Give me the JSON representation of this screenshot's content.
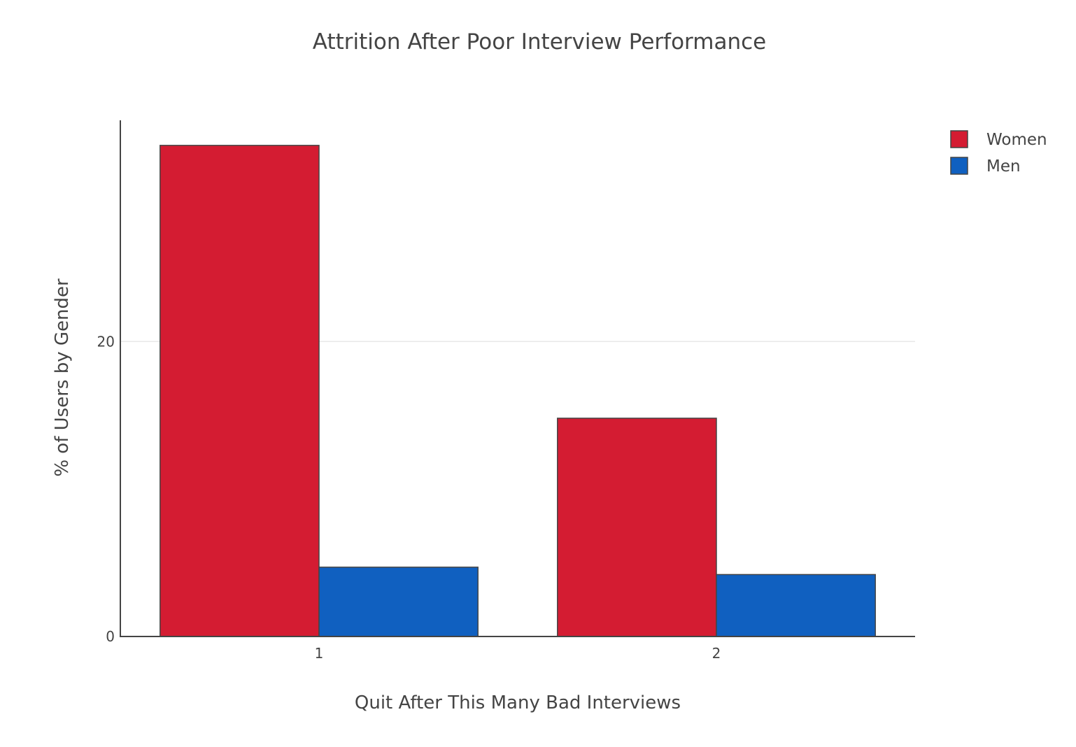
{
  "chart_data": {
    "type": "bar",
    "title": "Attrition After Poor Interview Performance",
    "xlabel": "Quit After This Many Bad Interviews",
    "ylabel": "% of Users by Gender",
    "categories": [
      "1",
      "2"
    ],
    "series": [
      {
        "name": "Women",
        "values": [
          33.3,
          14.8
        ],
        "color": "#d41c32"
      },
      {
        "name": "Men",
        "values": [
          4.7,
          4.2
        ],
        "color": "#1060c0"
      }
    ],
    "ylim": [
      0,
      35
    ],
    "yticks": [
      0,
      20
    ],
    "grid": true,
    "legend_position": "top-right",
    "bar_outline_color": "#444444"
  }
}
